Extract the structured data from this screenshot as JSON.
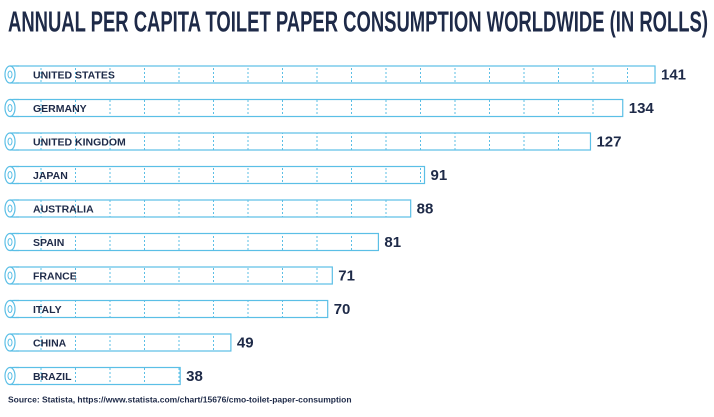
{
  "chart_data": {
    "type": "bar",
    "orientation": "horizontal",
    "title": "ANNUAL PER CAPITA TOILET PAPER CONSUMPTION WORLDWIDE (IN ROLLS)",
    "categories": [
      "UNITED STATES",
      "GERMANY",
      "UNITED KINGDOM",
      "JAPAN",
      "AUSTRALIA",
      "SPAIN",
      "FRANCE",
      "ITALY",
      "CHINA",
      "BRAZIL"
    ],
    "values": [
      141,
      134,
      127,
      91,
      88,
      81,
      71,
      70,
      49,
      38
    ],
    "color": "#5bbfe6",
    "source": "Source: Statista, https://www.statista.com/chart/15676/cmo-toilet-paper-consumption"
  }
}
